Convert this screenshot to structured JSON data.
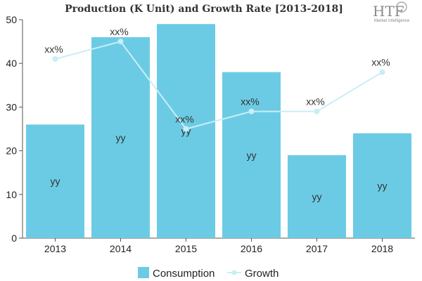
{
  "chart_data": {
    "type": "bar",
    "title": "Production (K Unit) and Growth Rate [2013-2018]",
    "categories": [
      "2013",
      "2014",
      "2015",
      "2016",
      "2017",
      "2018"
    ],
    "ylim": [
      0,
      50
    ],
    "yticks": [
      0,
      10,
      20,
      30,
      40,
      50
    ],
    "series": [
      {
        "name": "Consumption",
        "type": "bar",
        "color": "#6ccbe4",
        "values": [
          26,
          46,
          49,
          38,
          19,
          24
        ],
        "labels": [
          "yy",
          "yy",
          "yy",
          "yy",
          "yy",
          "yy"
        ]
      },
      {
        "name": "Growth",
        "type": "line",
        "color": "#c9eef5",
        "values": [
          41,
          45,
          25,
          29,
          29,
          38
        ],
        "labels": [
          "xx%",
          "xx%",
          "xx%",
          "xx%",
          "xx%",
          "xx%"
        ]
      }
    ],
    "legend": "bottom-center"
  },
  "logo": {
    "mark": "HTF",
    "caption": "Market Intelligence",
    "icon": "globe-icon"
  }
}
